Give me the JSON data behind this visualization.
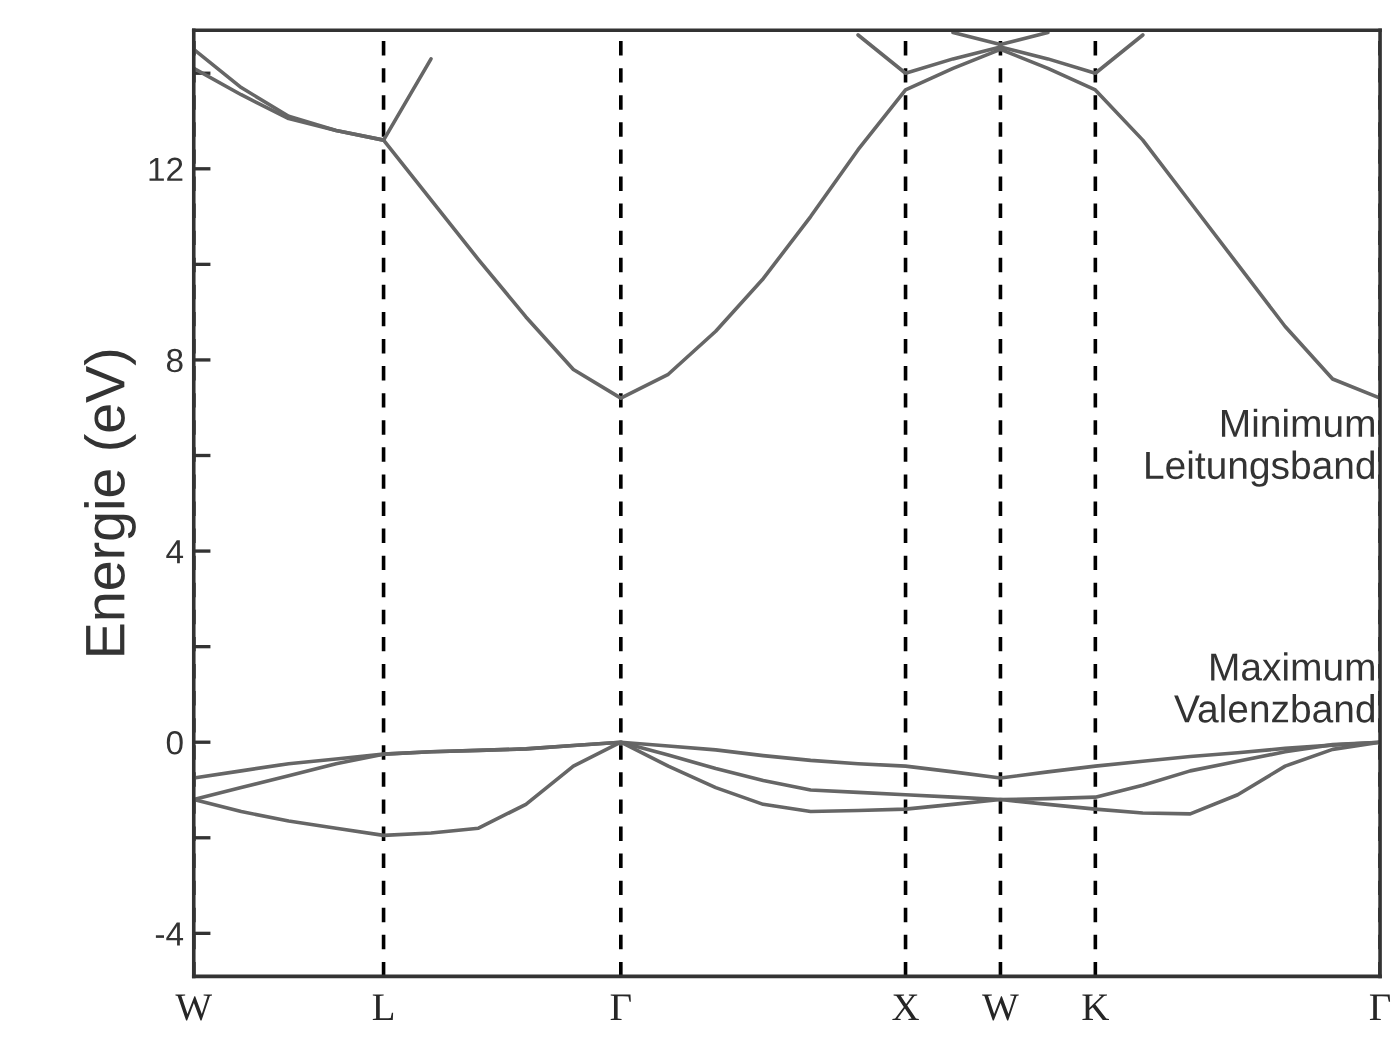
{
  "chart_data": {
    "type": "line",
    "ylabel": "Energie (eV)",
    "categories": [
      "W",
      null,
      null,
      null,
      "L",
      null,
      null,
      null,
      null,
      "Γ",
      null,
      null,
      null,
      null,
      null,
      "X",
      null,
      "W",
      null,
      "K",
      null,
      null,
      null,
      null,
      null,
      "Γ"
    ],
    "ylim": [
      -4.9,
      14.9
    ],
    "yticks": [
      -4,
      {
        "value": -2,
        "label": null
      },
      0,
      {
        "value": 2,
        "label": null
      },
      4,
      {
        "value": 6,
        "label": null
      },
      8,
      {
        "value": 10,
        "label": null
      },
      12,
      {
        "value": 14,
        "label": null
      }
    ],
    "grid": "x",
    "legend": false,
    "marker": "none",
    "line_style": "solid",
    "series": [
      {
        "color": "#666666",
        "values": [
          -0.75,
          -0.6,
          -0.45,
          -0.35,
          -0.25,
          -0.2,
          -0.17,
          -0.14,
          -0.07,
          0,
          -0.08,
          -0.16,
          -0.28,
          -0.38,
          -0.45,
          -0.5,
          -0.62,
          -0.75,
          -0.62,
          -0.5,
          -0.4,
          -0.3,
          -0.22,
          -0.13,
          -0.06,
          0
        ]
      },
      {
        "color": "#666666",
        "values": [
          -1.2,
          -0.95,
          -0.7,
          -0.45,
          -0.25,
          -0.2,
          -0.17,
          -0.14,
          -0.07,
          0,
          -0.27,
          -0.55,
          -0.8,
          -1.0,
          -1.05,
          -1.1,
          -1.15,
          -1.2,
          -1.18,
          -1.15,
          -0.9,
          -0.6,
          -0.4,
          -0.2,
          -0.05,
          0
        ]
      },
      {
        "color": "#666666",
        "values": [
          -1.2,
          -1.45,
          -1.65,
          -1.8,
          -1.95,
          -1.9,
          -1.8,
          -1.3,
          -0.5,
          0,
          -0.5,
          -0.95,
          -1.3,
          -1.45,
          -1.43,
          -1.4,
          -1.3,
          -1.2,
          -1.3,
          -1.4,
          -1.48,
          -1.5,
          -1.1,
          -0.5,
          -0.15,
          0
        ]
      },
      {
        "color": "#666666",
        "values": [
          14.1,
          13.55,
          13.05,
          12.8,
          12.6,
          11.35,
          10.1,
          8.9,
          7.8,
          7.2,
          7.7,
          8.6,
          9.7,
          11.0,
          12.4,
          13.65,
          14.1,
          14.5,
          14.1,
          13.65,
          12.6,
          11.3,
          10.0,
          8.7,
          7.6,
          7.2
        ]
      },
      {
        "color": "#666666",
        "values": [
          14.5,
          13.7,
          13.1,
          12.8,
          12.6,
          null,
          null,
          null,
          null,
          null,
          null,
          null,
          null,
          null,
          null,
          null,
          null,
          null,
          null,
          null,
          null,
          null,
          null,
          null,
          null,
          null
        ]
      },
      {
        "color": "#666666",
        "values": [
          null,
          null,
          null,
          null,
          12.6,
          14.3,
          null,
          null,
          null,
          null,
          null,
          null,
          null,
          null,
          null,
          null,
          null,
          null,
          null,
          null,
          null,
          null,
          null,
          null,
          null,
          null
        ]
      },
      {
        "color": "#666666",
        "values": [
          null,
          null,
          null,
          null,
          null,
          null,
          null,
          null,
          null,
          null,
          null,
          null,
          null,
          null,
          14.8,
          14.0,
          14.3,
          14.55,
          14.3,
          14.0,
          14.8,
          null,
          null,
          null,
          null,
          null
        ]
      },
      {
        "color": "#666666",
        "values": [
          null,
          null,
          null,
          null,
          null,
          null,
          null,
          null,
          null,
          null,
          null,
          null,
          null,
          null,
          null,
          null,
          14.85,
          14.6,
          14.85,
          null,
          null,
          null,
          null,
          null,
          null,
          null
        ]
      }
    ],
    "annotations": [
      "Minimum\nLeitungsband",
      "Maximum\nValenzband"
    ]
  }
}
